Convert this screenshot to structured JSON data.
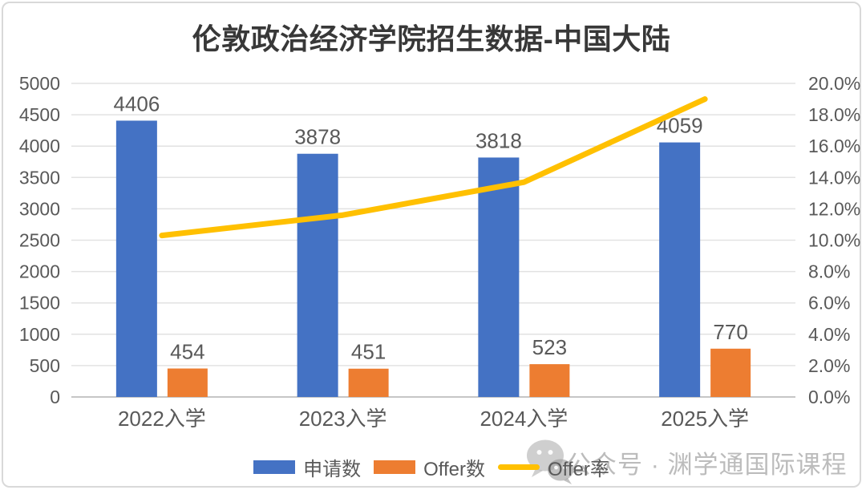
{
  "chart_data": {
    "type": "bar",
    "title": "伦敦政治经济学院招生数据-中国大陆",
    "categories": [
      "2022入学",
      "2023入学",
      "2024入学",
      "2025入学"
    ],
    "series": [
      {
        "name": "申请数",
        "type": "bar",
        "axis": "left",
        "color": "#4472C4",
        "values": [
          4406,
          3878,
          3818,
          4059
        ]
      },
      {
        "name": "Offer数",
        "type": "bar",
        "axis": "left",
        "color": "#ED7D31",
        "values": [
          454,
          451,
          523,
          770
        ]
      },
      {
        "name": "Offer率",
        "type": "line",
        "axis": "right",
        "color": "#FFC000",
        "unit": "%",
        "values": [
          10.3,
          11.6,
          13.7,
          19.0
        ]
      }
    ],
    "left_axis": {
      "min": 0,
      "max": 5000,
      "step": 500,
      "tick_labels": [
        "0",
        "500",
        "1000",
        "1500",
        "2000",
        "2500",
        "3000",
        "3500",
        "4000",
        "4500",
        "5000"
      ]
    },
    "right_axis": {
      "min": 0,
      "max": 20,
      "step": 2,
      "tick_labels": [
        "0.0%",
        "2.0%",
        "4.0%",
        "6.0%",
        "8.0%",
        "10.0%",
        "12.0%",
        "14.0%",
        "16.0%",
        "18.0%",
        "20.0%"
      ]
    },
    "grid": true,
    "legend_position": "bottom",
    "bar_value_labels": {
      "申请数": [
        "4406",
        "3878",
        "3818",
        "4059"
      ],
      "Offer数": [
        "454",
        "451",
        "523",
        "770"
      ]
    }
  },
  "watermark": {
    "icon": "wechat-icon",
    "text": "公众号 · 渊学通国际课程"
  },
  "style": {
    "axis_text_color": "#595959",
    "label_text_color": "#595959",
    "grid_color": "#e2e2e2",
    "axis_line_color": "#c6c6c6",
    "title_color": "#383838",
    "border_color": "#d9d9d9",
    "watermark_color": "#bcbcbc",
    "watermark_icon_color": "#9f9f9f"
  }
}
